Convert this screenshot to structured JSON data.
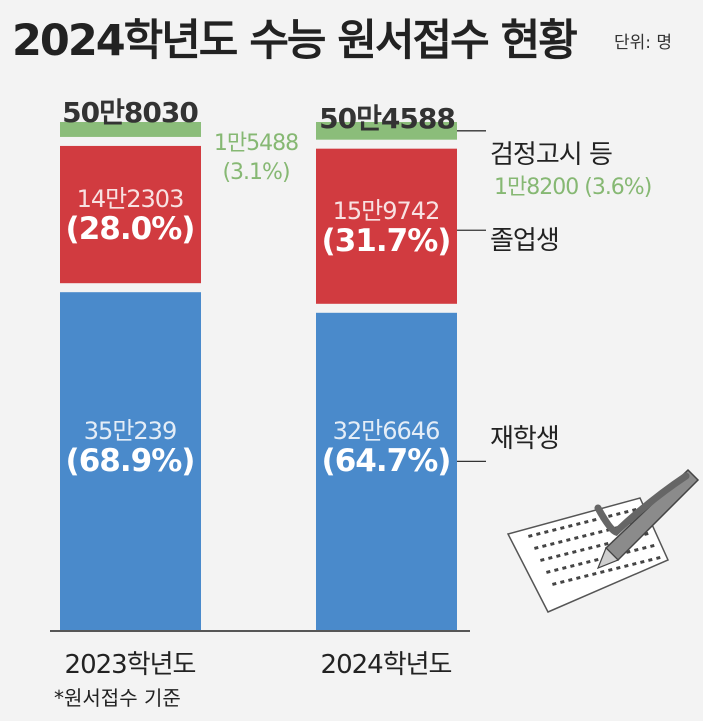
{
  "title": "2024학년도 수능 원서접수 현황",
  "unit": "단위: 명",
  "footnote": "*원서접수 기준",
  "colors": {
    "student": "#4a8acb",
    "graduate": "#d13b40",
    "ged": "#8bbd7a",
    "ged_text": "#86b873"
  },
  "chart_data": {
    "type": "bar",
    "stacked": true,
    "categories": [
      "2023학년도",
      "2024학년도"
    ],
    "totals": [
      "50만8030",
      "50만4588"
    ],
    "total_values": [
      508030,
      504588
    ],
    "series": [
      {
        "name": "재학생",
        "values": [
          350239,
          326646
        ],
        "value_labels": [
          "35만239",
          "32만6646"
        ],
        "percent_labels": [
          "(68.9%)",
          "(64.7%)"
        ]
      },
      {
        "name": "졸업생",
        "values": [
          142303,
          159742
        ],
        "value_labels": [
          "14만2303",
          "15만9742"
        ],
        "percent_labels": [
          "(28.0%)",
          "(31.7%)"
        ]
      },
      {
        "name": "검정고시 등",
        "values": [
          15488,
          18200
        ],
        "value_labels": [
          "1만5488",
          "1만8200"
        ],
        "percent_labels": [
          "(3.1%)",
          "(3.6%)"
        ]
      }
    ]
  }
}
